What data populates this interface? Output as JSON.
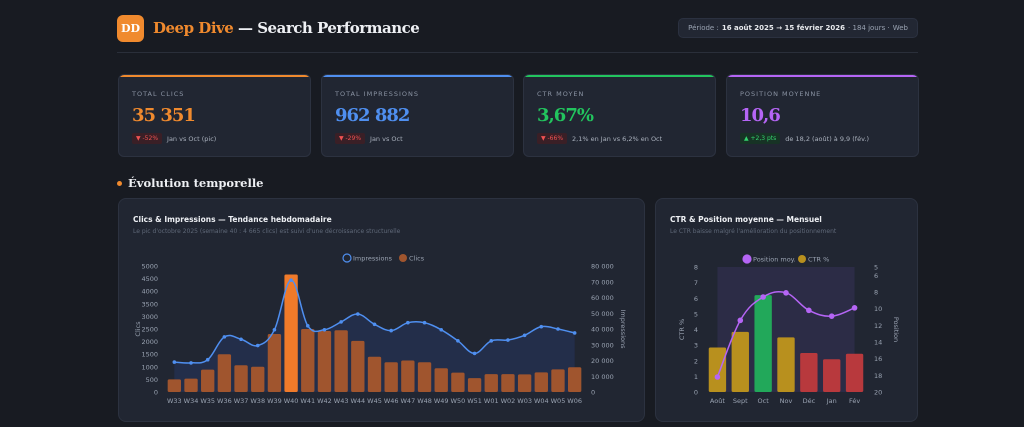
{
  "header": {
    "logo": "DD",
    "brand": "Deep Dive",
    "title_rest": " — Search Performance",
    "period": {
      "label": "Période :",
      "range": "16 août 2025 → 15 février 2026",
      "days": "· 184 jours ·",
      "scope": "Web"
    }
  },
  "kpis": [
    {
      "label": "TOTAL CLICS",
      "value": "35 351",
      "badge": "▼ -52%",
      "badge_type": "down",
      "note": "Jan vs Oct (pic)",
      "color": "#f08a2e"
    },
    {
      "label": "TOTAL IMPRESSIONS",
      "value": "962 882",
      "badge": "▼ -29%",
      "badge_type": "down",
      "note": "Jan vs Oct",
      "color": "#4f8ff0"
    },
    {
      "label": "CTR MOYEN",
      "value": "3,67%",
      "badge": "▼ -66%",
      "badge_type": "down",
      "note": "2,1% en Jan vs 6,2% en Oct",
      "color": "#22c55e"
    },
    {
      "label": "POSITION MOYENNE",
      "value": "10,6",
      "badge": "▲ +2,3 pts",
      "badge_type": "up",
      "note": "de 18,2 (août) à 9,9 (fév.)",
      "color": "#b565f5"
    }
  ],
  "section": {
    "title": "Évolution temporelle"
  },
  "chart_data": [
    {
      "type": "bar+line",
      "title": "Clics & Impressions — Tendance hebdomadaire",
      "subtitle": "Le pic d'octobre 2025 (semaine 40 : 4 665 clics) est suivi d'une décroissance structurelle",
      "categories": [
        "W33",
        "W34",
        "W35",
        "W36",
        "W37",
        "W38",
        "W39",
        "W40",
        "W41",
        "W42",
        "W43",
        "W44",
        "W45",
        "W46",
        "W47",
        "W48",
        "W49",
        "W50",
        "W51",
        "W01",
        "W02",
        "W03",
        "W04",
        "W05",
        "W06"
      ],
      "series": [
        {
          "name": "Impressions",
          "type": "line",
          "axis": "right",
          "color": "#4f8ff0",
          "values": [
            19000,
            18500,
            20500,
            35000,
            33500,
            29500,
            39500,
            71000,
            42000,
            39500,
            44500,
            49500,
            43000,
            39000,
            44000,
            44000,
            39500,
            32500,
            24500,
            32500,
            33000,
            36000,
            41500,
            40000,
            37500
          ]
        },
        {
          "name": "Clics",
          "type": "bar",
          "axis": "left",
          "color": "#a0552e",
          "highlight_color": "#f07a2a",
          "highlight": "W40",
          "values": [
            500,
            530,
            890,
            1500,
            1060,
            1000,
            2300,
            4665,
            2500,
            2420,
            2450,
            2030,
            1400,
            1180,
            1250,
            1180,
            940,
            770,
            550,
            710,
            710,
            700,
            780,
            900,
            980
          ]
        }
      ],
      "ylabel": "Clics",
      "ylim": [
        0,
        5000
      ],
      "yticks": [
        0,
        500,
        1000,
        1500,
        2000,
        2500,
        3000,
        3500,
        4000,
        4500,
        5000
      ],
      "yticklabels": [
        "0",
        "500",
        "1000",
        "1500",
        "2000",
        "2500",
        "3000",
        "3500",
        "4000",
        "4500",
        "5000"
      ],
      "y2label": "Impressions",
      "y2lim": [
        0,
        80000
      ],
      "y2ticks": [
        0,
        10000,
        20000,
        30000,
        40000,
        50000,
        60000,
        70000,
        80000
      ],
      "y2ticklabels": [
        "0",
        "10 000",
        "20 000",
        "30 000",
        "40 000",
        "50 000",
        "60 000",
        "70 000",
        "80 000"
      ],
      "legend": "top-center",
      "grid": false
    },
    {
      "type": "bar+line",
      "title": "CTR & Position moyenne — Mensuel",
      "subtitle": "Le CTR baisse malgré l'amélioration du positionnement",
      "categories": [
        "Août",
        "Sept",
        "Oct",
        "Nov",
        "Déc",
        "Jan",
        "Fév"
      ],
      "series": [
        {
          "name": "Position moy.",
          "type": "line",
          "axis": "right",
          "color": "#b565f5",
          "values": [
            18.2,
            11.4,
            8.6,
            8.1,
            10.2,
            10.9,
            9.9
          ]
        },
        {
          "name": "CTR %",
          "type": "bar",
          "axis": "left",
          "color": "#b8901e",
          "values": [
            2.85,
            3.85,
            6.2,
            3.5,
            2.5,
            2.1,
            2.45
          ],
          "bar_colors": [
            "#b8901e",
            "#b8901e",
            "#22a85a",
            "#b8901e",
            "#b8393d",
            "#b8393d",
            "#b8393d"
          ]
        }
      ],
      "ylabel": "CTR %",
      "ylim": [
        0,
        8
      ],
      "yticks": [
        0,
        1,
        2,
        3,
        4,
        5,
        6,
        7,
        8
      ],
      "yticklabels": [
        "0",
        "1",
        "2",
        "3",
        "4",
        "5",
        "6",
        "7",
        "8"
      ],
      "y2label": "Position",
      "y2lim": [
        20,
        5
      ],
      "y2reversed": true,
      "y2ticks": [
        5,
        6,
        8,
        10,
        12,
        14,
        16,
        18,
        20
      ],
      "y2ticklabels": [
        "5",
        "6",
        "8",
        "10",
        "12",
        "14",
        "16",
        "18",
        "20"
      ],
      "legend": "top-center",
      "grid": false
    }
  ]
}
